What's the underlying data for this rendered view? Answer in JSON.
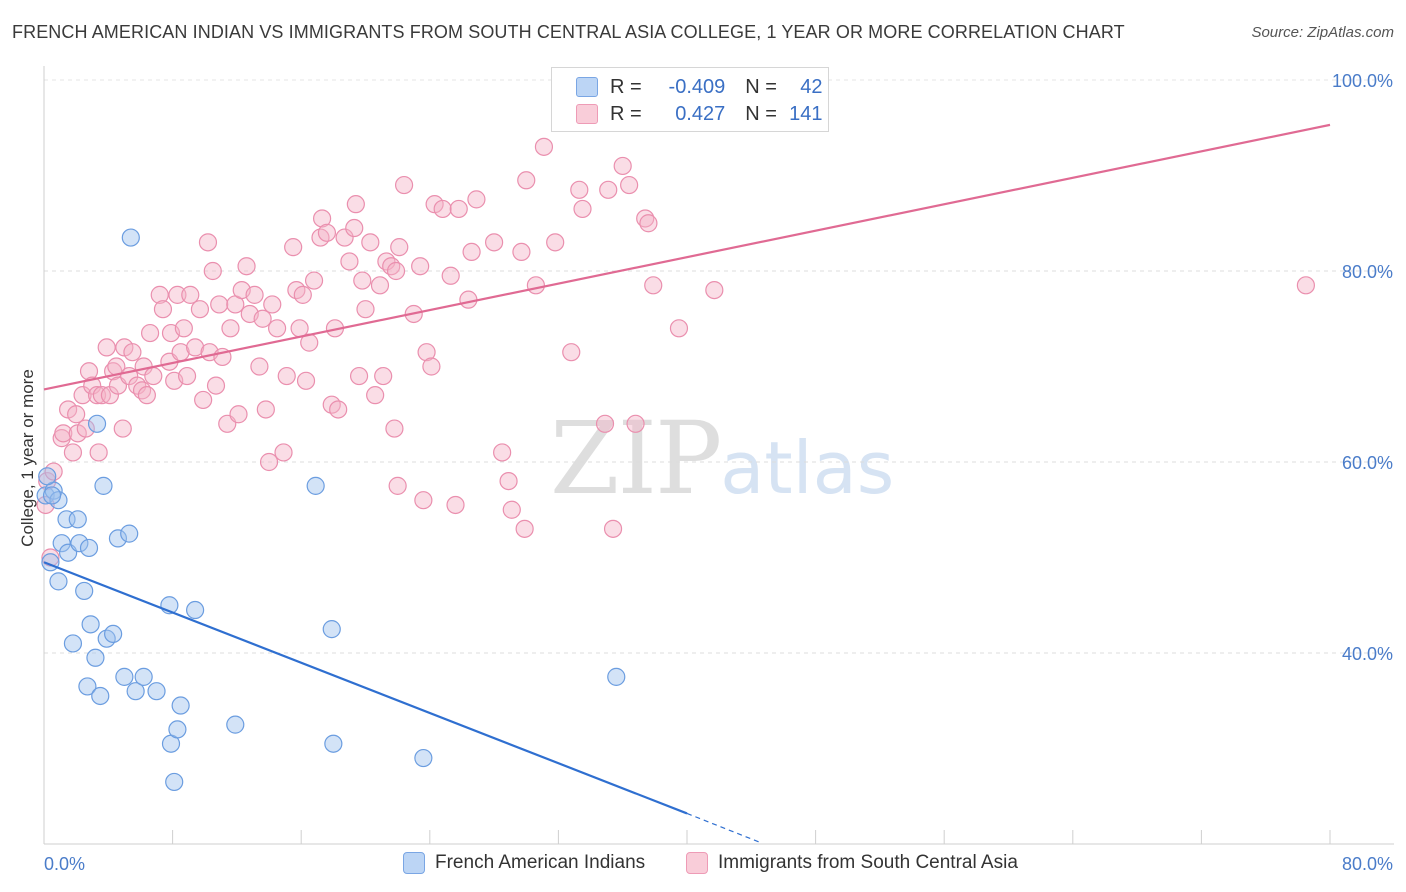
{
  "title": "FRENCH AMERICAN INDIAN VS IMMIGRANTS FROM SOUTH CENTRAL ASIA COLLEGE, 1 YEAR OR MORE CORRELATION CHART",
  "source": "Source: ZipAtlas.com",
  "watermark": {
    "zip": "ZIP",
    "atlas": "atlas"
  },
  "legend": {
    "rows": [
      {
        "r_label": "R =",
        "r_value": "-0.409",
        "n_label": "N =",
        "n_value": "42",
        "color": "#9ec1ee"
      },
      {
        "r_label": "R =",
        "r_value": "0.427",
        "n_label": "N =",
        "n_value": "141",
        "color": "#f5b3c8"
      }
    ]
  },
  "chart_data": {
    "type": "scatter",
    "title": "FRENCH AMERICAN INDIAN VS IMMIGRANTS FROM SOUTH CENTRAL ASIA COLLEGE, 1 YEAR OR MORE CORRELATION CHART",
    "xlabel": "",
    "ylabel": "College, 1 year or more",
    "xlim": [
      0,
      80
    ],
    "ylim": [
      20,
      100
    ],
    "x_tick_labels": [
      "0.0%",
      "80.0%"
    ],
    "y_tick_labels": [
      "100.0%",
      "80.0%",
      "60.0%",
      "40.0%"
    ],
    "y_ticks": [
      100,
      80,
      60,
      40
    ],
    "grid": true,
    "legend_position": "bottom",
    "series": [
      {
        "name": "French American Indians",
        "color": "#9ec1ee",
        "stroke": "#6b9de0",
        "trend": {
          "x": [
            0,
            40
          ],
          "y": [
            49.5,
            23.2
          ],
          "dashed_to": [
            44.5,
            20.2
          ],
          "color": "#2f6fd0"
        },
        "points": [
          [
            0.1,
            56.5
          ],
          [
            0.4,
            49.5
          ],
          [
            0.6,
            57
          ],
          [
            0.9,
            56
          ],
          [
            0.9,
            47.5
          ],
          [
            1.1,
            51.5
          ],
          [
            1.4,
            54
          ],
          [
            1.5,
            50.5
          ],
          [
            1.8,
            41
          ],
          [
            2.1,
            54
          ],
          [
            2.2,
            51.5
          ],
          [
            2.5,
            46.5
          ],
          [
            2.7,
            36.5
          ],
          [
            2.8,
            51
          ],
          [
            2.9,
            43
          ],
          [
            3.2,
            39.5
          ],
          [
            3.3,
            64
          ],
          [
            3.5,
            35.5
          ],
          [
            3.7,
            57.5
          ],
          [
            3.9,
            41.5
          ],
          [
            4.3,
            42
          ],
          [
            4.6,
            52
          ],
          [
            5,
            37.5
          ],
          [
            5.3,
            52.5
          ],
          [
            5.4,
            83.5
          ],
          [
            5.7,
            36
          ],
          [
            6.2,
            37.5
          ],
          [
            7,
            36
          ],
          [
            7.8,
            45
          ],
          [
            7.9,
            30.5
          ],
          [
            8.1,
            26.5
          ],
          [
            8.3,
            32
          ],
          [
            8.5,
            34.5
          ],
          [
            9.4,
            44.5
          ],
          [
            11.9,
            32.5
          ],
          [
            16.9,
            57.5
          ],
          [
            17.9,
            42.5
          ],
          [
            18,
            30.5
          ],
          [
            23.6,
            29
          ],
          [
            35.6,
            37.5
          ],
          [
            0.2,
            58.5
          ],
          [
            0.5,
            56.5
          ]
        ]
      },
      {
        "name": "Immigrants from South Central Asia",
        "color": "#f5b3c8",
        "stroke": "#ea8fae",
        "trend": {
          "x": [
            0,
            80
          ],
          "y": [
            67.6,
            95.3
          ],
          "color": "#e06a93"
        },
        "points": [
          [
            0.1,
            55.5
          ],
          [
            0.2,
            58
          ],
          [
            0.4,
            50
          ],
          [
            0.6,
            59
          ],
          [
            1.1,
            62.5
          ],
          [
            1.2,
            63
          ],
          [
            1.5,
            65.5
          ],
          [
            1.8,
            61
          ],
          [
            2,
            65
          ],
          [
            2.1,
            63
          ],
          [
            2.4,
            67
          ],
          [
            2.6,
            63.5
          ],
          [
            2.8,
            69.5
          ],
          [
            3,
            68
          ],
          [
            3.3,
            67
          ],
          [
            3.4,
            61
          ],
          [
            3.6,
            67
          ],
          [
            3.9,
            72
          ],
          [
            4.1,
            67
          ],
          [
            4.3,
            69.5
          ],
          [
            4.5,
            70
          ],
          [
            4.6,
            68
          ],
          [
            4.9,
            63.5
          ],
          [
            5,
            72
          ],
          [
            5.3,
            69
          ],
          [
            5.5,
            71.5
          ],
          [
            5.8,
            68
          ],
          [
            6.1,
            67.5
          ],
          [
            6.2,
            70
          ],
          [
            6.4,
            67
          ],
          [
            6.6,
            73.5
          ],
          [
            6.8,
            69
          ],
          [
            7.2,
            77.5
          ],
          [
            7.4,
            76
          ],
          [
            7.8,
            70.5
          ],
          [
            7.9,
            73.5
          ],
          [
            8.1,
            68.5
          ],
          [
            8.3,
            77.5
          ],
          [
            8.5,
            71.5
          ],
          [
            8.7,
            74
          ],
          [
            8.9,
            69
          ],
          [
            9.1,
            77.5
          ],
          [
            9.4,
            72
          ],
          [
            9.7,
            76
          ],
          [
            9.9,
            66.5
          ],
          [
            10.2,
            83
          ],
          [
            10.3,
            71.5
          ],
          [
            10.5,
            80
          ],
          [
            10.7,
            68
          ],
          [
            10.9,
            76.5
          ],
          [
            11.1,
            71
          ],
          [
            11.4,
            64
          ],
          [
            11.6,
            74
          ],
          [
            11.9,
            76.5
          ],
          [
            12.1,
            65
          ],
          [
            12.3,
            78
          ],
          [
            12.6,
            80.5
          ],
          [
            12.8,
            75.5
          ],
          [
            13.1,
            77.5
          ],
          [
            13.4,
            70
          ],
          [
            13.6,
            75
          ],
          [
            13.8,
            65.5
          ],
          [
            14,
            60
          ],
          [
            14.2,
            76.5
          ],
          [
            14.5,
            74
          ],
          [
            14.9,
            61
          ],
          [
            15.1,
            69
          ],
          [
            15.5,
            82.5
          ],
          [
            15.7,
            78
          ],
          [
            15.9,
            74
          ],
          [
            16.1,
            77.5
          ],
          [
            16.3,
            68.5
          ],
          [
            16.5,
            72.5
          ],
          [
            16.8,
            79
          ],
          [
            17.2,
            83.5
          ],
          [
            17.3,
            85.5
          ],
          [
            17.6,
            84
          ],
          [
            17.9,
            66
          ],
          [
            18.1,
            74
          ],
          [
            18.3,
            65.5
          ],
          [
            18.7,
            83.5
          ],
          [
            19,
            81
          ],
          [
            19.3,
            84.5
          ],
          [
            19.4,
            87
          ],
          [
            19.6,
            69
          ],
          [
            19.8,
            79
          ],
          [
            20,
            76
          ],
          [
            20.3,
            83
          ],
          [
            20.6,
            67
          ],
          [
            20.9,
            78.5
          ],
          [
            21.1,
            69
          ],
          [
            21.3,
            81
          ],
          [
            21.6,
            80.5
          ],
          [
            21.8,
            63.5
          ],
          [
            21.9,
            80
          ],
          [
            22.1,
            82.5
          ],
          [
            22.4,
            89
          ],
          [
            23,
            75.5
          ],
          [
            23.4,
            80.5
          ],
          [
            23.6,
            56
          ],
          [
            23.8,
            71.5
          ],
          [
            24.1,
            70
          ],
          [
            24.3,
            87
          ],
          [
            24.8,
            86.5
          ],
          [
            25.3,
            79.5
          ],
          [
            25.6,
            55.5
          ],
          [
            25.8,
            86.5
          ],
          [
            26.4,
            77
          ],
          [
            26.6,
            82
          ],
          [
            26.9,
            87.5
          ],
          [
            28,
            83
          ],
          [
            28.5,
            61
          ],
          [
            28.9,
            58
          ],
          [
            29.1,
            55
          ],
          [
            29.7,
            82
          ],
          [
            29.9,
            53
          ],
          [
            30,
            89.5
          ],
          [
            30.6,
            78.5
          ],
          [
            31.1,
            93
          ],
          [
            31.8,
            83
          ],
          [
            32.8,
            71.5
          ],
          [
            33.3,
            88.5
          ],
          [
            33.5,
            86.5
          ],
          [
            34.9,
            64
          ],
          [
            35.1,
            88.5
          ],
          [
            35.4,
            53
          ],
          [
            36,
            91
          ],
          [
            36.4,
            89
          ],
          [
            36.8,
            64
          ],
          [
            37.4,
            85.5
          ],
          [
            37.6,
            85
          ],
          [
            37.9,
            78.5
          ],
          [
            39.5,
            74
          ],
          [
            41.7,
            78
          ],
          [
            78.5,
            78.5
          ],
          [
            22,
            57.5
          ]
        ]
      }
    ]
  }
}
